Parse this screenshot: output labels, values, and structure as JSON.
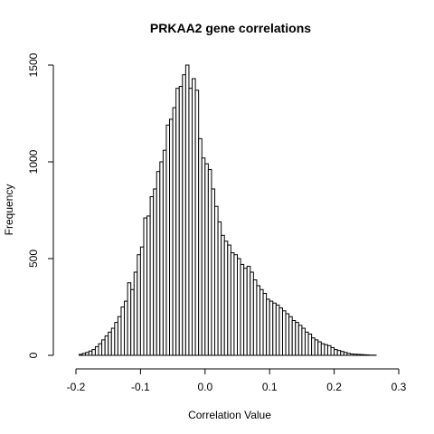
{
  "chart_data": {
    "type": "bar",
    "title": "PRKAA2 gene correlations",
    "xlabel": "Correlation Value",
    "ylabel": "Frequency",
    "xlim": [
      -0.2,
      0.3
    ],
    "ylim": [
      0,
      1500
    ],
    "bin_width": 0.005,
    "x_ticks": [
      -0.2,
      -0.1,
      0.0,
      0.1,
      0.2,
      0.3
    ],
    "x_tick_labels": [
      "-0.2",
      "-0.1",
      "0.0",
      "0.1",
      "0.2",
      "0.3"
    ],
    "y_ticks": [
      0,
      500,
      1000,
      1500
    ],
    "y_tick_labels": [
      "0",
      "500",
      "1000",
      "1500"
    ],
    "grid": false,
    "bins_start": [
      -0.195,
      -0.19,
      -0.185,
      -0.18,
      -0.175,
      -0.17,
      -0.165,
      -0.16,
      -0.155,
      -0.15,
      -0.145,
      -0.14,
      -0.135,
      -0.13,
      -0.125,
      -0.12,
      -0.115,
      -0.11,
      -0.105,
      -0.1,
      -0.095,
      -0.09,
      -0.085,
      -0.08,
      -0.075,
      -0.07,
      -0.065,
      -0.06,
      -0.055,
      -0.05,
      -0.045,
      -0.04,
      -0.035,
      -0.03,
      -0.025,
      -0.02,
      -0.015,
      -0.01,
      -0.005,
      0.0,
      0.005,
      0.01,
      0.015,
      0.02,
      0.025,
      0.03,
      0.035,
      0.04,
      0.045,
      0.05,
      0.055,
      0.06,
      0.065,
      0.07,
      0.075,
      0.08,
      0.085,
      0.09,
      0.095,
      0.1,
      0.105,
      0.11,
      0.115,
      0.12,
      0.125,
      0.13,
      0.135,
      0.14,
      0.145,
      0.15,
      0.155,
      0.16,
      0.165,
      0.17,
      0.175,
      0.18,
      0.185,
      0.19,
      0.195,
      0.2,
      0.205,
      0.21,
      0.215,
      0.22,
      0.225,
      0.23,
      0.235,
      0.24,
      0.245,
      0.25,
      0.255,
      0.26
    ],
    "values": [
      5,
      10,
      15,
      22,
      30,
      45,
      60,
      80,
      100,
      120,
      140,
      170,
      200,
      250,
      280,
      375,
      340,
      430,
      520,
      560,
      710,
      720,
      820,
      860,
      950,
      1000,
      1060,
      1190,
      1220,
      1280,
      1380,
      1390,
      1450,
      1500,
      1380,
      1430,
      1370,
      1120,
      1020,
      990,
      960,
      860,
      770,
      690,
      620,
      590,
      570,
      530,
      520,
      500,
      470,
      450,
      460,
      430,
      390,
      360,
      340,
      320,
      290,
      280,
      270,
      260,
      245,
      230,
      215,
      200,
      180,
      170,
      155,
      140,
      120,
      110,
      90,
      80,
      70,
      60,
      55,
      50,
      40,
      30,
      25,
      20,
      15,
      10,
      7,
      6,
      5,
      4,
      3,
      2,
      1,
      1
    ]
  }
}
